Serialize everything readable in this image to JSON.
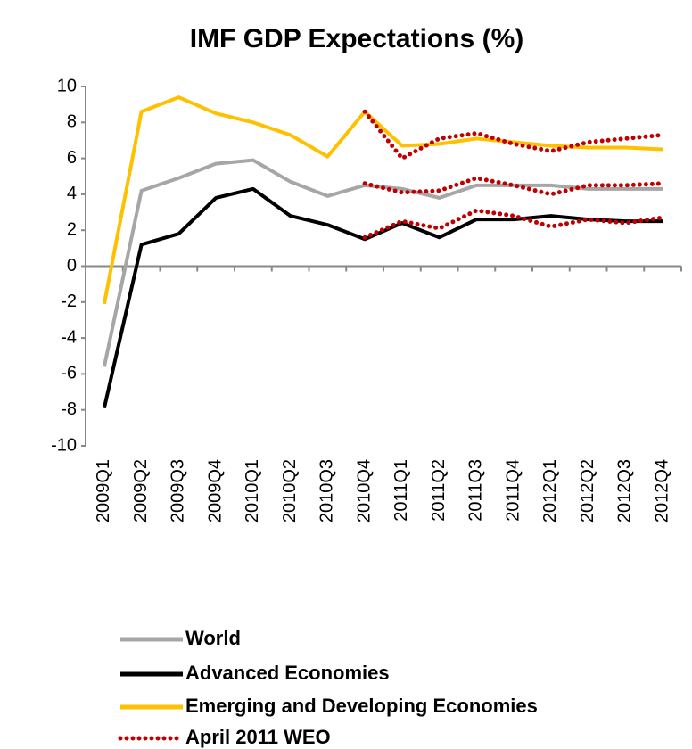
{
  "chart_data": {
    "type": "line",
    "title": "IMF GDP Expectations (%)",
    "categories": [
      "2009Q1",
      "2009Q2",
      "2009Q3",
      "2009Q4",
      "2010Q1",
      "2010Q2",
      "2010Q3",
      "2010Q4",
      "2011Q1",
      "2011Q2",
      "2011Q3",
      "2011Q4",
      "2012Q1",
      "2012Q2",
      "2012Q3",
      "2012Q4"
    ],
    "series": [
      {
        "name": "World",
        "color": "#a6a6a6",
        "values": [
          -5.6,
          4.2,
          4.9,
          5.7,
          5.9,
          4.7,
          3.9,
          4.5,
          4.3,
          3.8,
          4.5,
          4.5,
          4.5,
          4.3,
          4.3,
          4.3
        ]
      },
      {
        "name": "Advanced Economies",
        "color": "#000000",
        "values": [
          -7.9,
          1.2,
          1.8,
          3.8,
          4.3,
          2.8,
          2.3,
          1.5,
          2.4,
          1.6,
          2.6,
          2.6,
          2.8,
          2.6,
          2.5,
          2.5
        ]
      },
      {
        "name": "Emerging and Developing Economies",
        "color": "#ffc000",
        "values": [
          -2.1,
          8.6,
          9.4,
          8.5,
          8.0,
          7.3,
          6.1,
          8.6,
          6.7,
          6.8,
          7.1,
          6.9,
          6.7,
          6.6,
          6.6,
          6.5
        ]
      }
    ],
    "forecast": {
      "name": "April 2011 WEO",
      "color": "#c00000",
      "style": "dotted",
      "lines": [
        [
          null,
          null,
          null,
          null,
          null,
          null,
          null,
          4.6,
          4.1,
          4.2,
          4.9,
          4.5,
          4.0,
          4.5,
          4.5,
          4.6
        ],
        [
          null,
          null,
          null,
          null,
          null,
          null,
          null,
          1.6,
          2.5,
          2.1,
          3.1,
          2.8,
          2.2,
          2.6,
          2.4,
          2.7
        ],
        [
          null,
          null,
          null,
          null,
          null,
          null,
          null,
          8.6,
          6.0,
          7.1,
          7.4,
          6.8,
          6.4,
          6.9,
          7.1,
          7.3
        ]
      ]
    },
    "ylim": [
      -10,
      10
    ],
    "yticks": [
      -10,
      -8,
      -6,
      -4,
      -2,
      0,
      2,
      4,
      6,
      8,
      10
    ],
    "grid": false
  }
}
